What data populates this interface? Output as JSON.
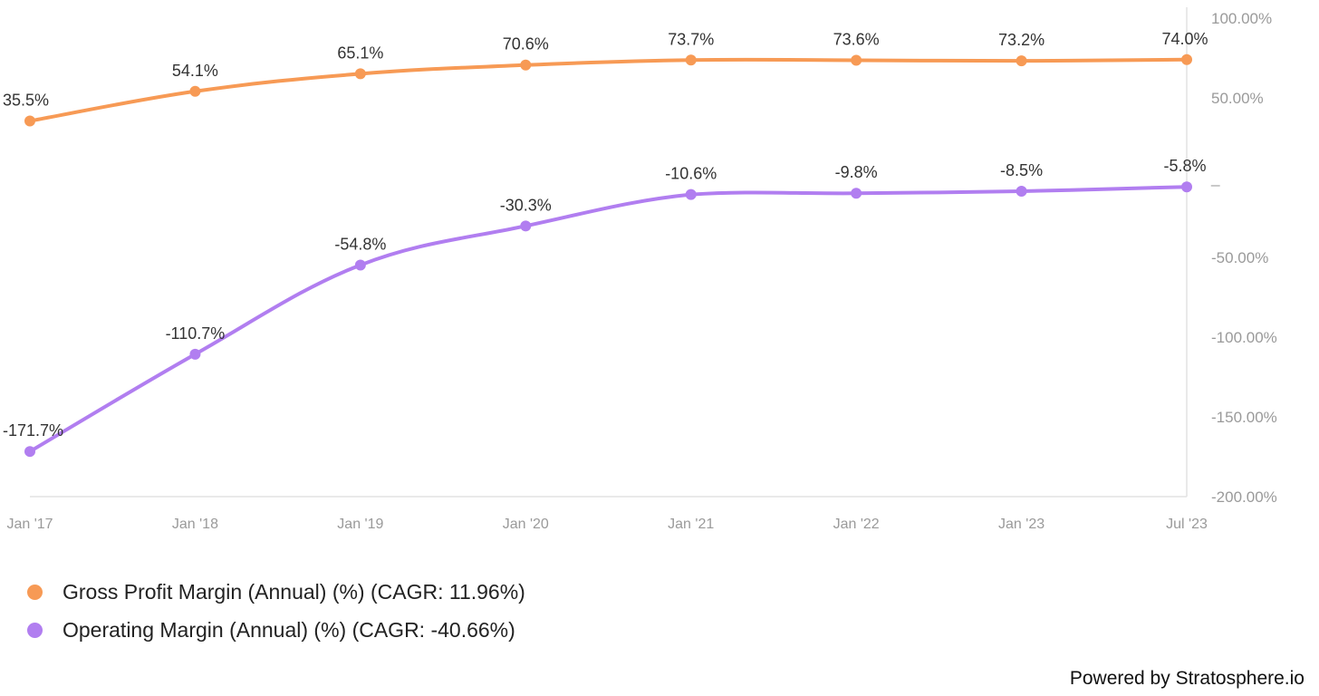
{
  "chart_data": {
    "type": "line",
    "categories": [
      "Jan '17",
      "Jan '18",
      "Jan '19",
      "Jan '20",
      "Jan '21",
      "Jan '22",
      "Jan '23",
      "Jul '23"
    ],
    "series": [
      {
        "name": "Gross Profit Margin (Annual) (%) (CAGR: 11.96%)",
        "color": "#f79a55",
        "values": [
          35.5,
          54.1,
          65.1,
          70.6,
          73.7,
          73.6,
          73.2,
          74.0
        ],
        "labels": [
          "35.5%",
          "54.1%",
          "65.1%",
          "70.6%",
          "73.7%",
          "73.6%",
          "73.2%",
          "74.0%"
        ]
      },
      {
        "name": "Operating Margin (Annual) (%) (CAGR: -40.66%)",
        "color": "#b17ef0",
        "values": [
          -171.7,
          -110.7,
          -54.8,
          -30.3,
          -10.6,
          -9.8,
          -8.5,
          -5.8
        ],
        "labels": [
          "-171.7%",
          "-110.7%",
          "-54.8%",
          "-30.3%",
          "-10.6%",
          "-9.8%",
          "-8.5%",
          "-5.8%"
        ]
      }
    ],
    "y_ticks": [
      100,
      50,
      0,
      -50,
      -100,
      -150,
      -200
    ],
    "y_tick_labels": [
      "100.00%",
      "50.00%",
      "_",
      "-50.00%",
      "-100.00%",
      "-150.00%",
      "-200.00%"
    ],
    "ylim": [
      -200,
      100
    ],
    "y_axis_position": "right",
    "grid": false,
    "legend_position": "bottom-left"
  },
  "legend": {
    "items": [
      {
        "label": "Gross Profit Margin (Annual) (%) (CAGR: 11.96%)",
        "color": "#f79a55"
      },
      {
        "label": "Operating Margin (Annual) (%) (CAGR: -40.66%)",
        "color": "#b17ef0"
      }
    ]
  },
  "credit": "Powered by Stratosphere.io"
}
